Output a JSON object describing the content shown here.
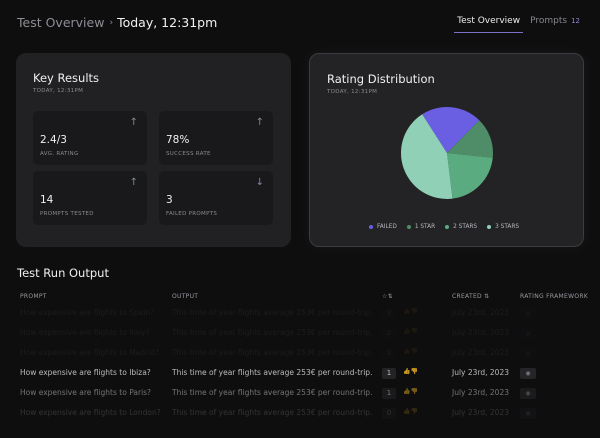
{
  "header": {
    "breadcrumb_parent": "Test Overview",
    "breadcrumb_separator": "›",
    "breadcrumb_current": "Today, 12:31pm",
    "tabs": [
      {
        "label": "Test Overview",
        "active": true
      },
      {
        "label": "Prompts",
        "count": "12",
        "active": false
      }
    ]
  },
  "key_results": {
    "title": "Key Results",
    "subtitle": "TODAY, 12:31PM",
    "metrics": [
      {
        "value": "2.4/3",
        "label": "AVG. RATING",
        "trend": "up",
        "icon": "arrow-up-icon"
      },
      {
        "value": "78%",
        "label": "SUCCESS RATE",
        "trend": "up",
        "icon": "arrow-up-icon"
      },
      {
        "value": "14",
        "label": "PROMPTS TESTED",
        "trend": "up",
        "icon": "arrow-up-icon"
      },
      {
        "value": "3",
        "label": "FAILED PROMPTS",
        "trend": "down",
        "icon": "arrow-down-icon"
      }
    ]
  },
  "rating_distribution": {
    "title": "Rating Distribution",
    "subtitle": "TODAY, 12:31PM",
    "chart_data": {
      "type": "pie",
      "categories": [
        "FAILED",
        "1 STAR",
        "2 STARS",
        "3 STARS"
      ],
      "values": [
        3,
        2,
        3,
        6
      ],
      "colors": [
        "#6a5ee3",
        "#4f8d68",
        "#5aac80",
        "#8fd0b6"
      ],
      "legend": "bottom"
    }
  },
  "test_run": {
    "title": "Test Run Output",
    "columns": {
      "prompt": "PROMPT",
      "output": "OUTPUT",
      "rating_icons": "☆⇅",
      "created": "CREATED ⇅",
      "framework": "RATING FRAMEWORK"
    },
    "thumbs_icons": "👍👎",
    "framework_icon": "◉",
    "rows": [
      {
        "prompt": "How expensive are flights to Spain?",
        "output": "This time of year flights average 253€ per round-trip.",
        "rating": "3",
        "created": "July 23rd, 2023"
      },
      {
        "prompt": "How expensive are flights to Italy?",
        "output": "This time of year flights average 253€ per round-trip.",
        "rating": "2",
        "created": "July 23rd, 2023"
      },
      {
        "prompt": "How expensive are flights to Madrid?",
        "output": "This time of year flights average 253€ per round-trip.",
        "rating": "2",
        "created": "July 23rd, 2023"
      },
      {
        "prompt": "How expensive are flights to Ibiza?",
        "output": "This time of year flights average 253€ per round-trip.",
        "rating": "1",
        "created": "July 23rd, 2023"
      },
      {
        "prompt": "How expensive are flights to Paris?",
        "output": "This time of year flights average 253€ per round-trip.",
        "rating": "1",
        "created": "July 23rd, 2023"
      },
      {
        "prompt": "How expensive are flights to London?",
        "output": "This time of year flights average 253€ per round-trip.",
        "rating": "0",
        "created": "July 23rd, 2023"
      }
    ]
  }
}
